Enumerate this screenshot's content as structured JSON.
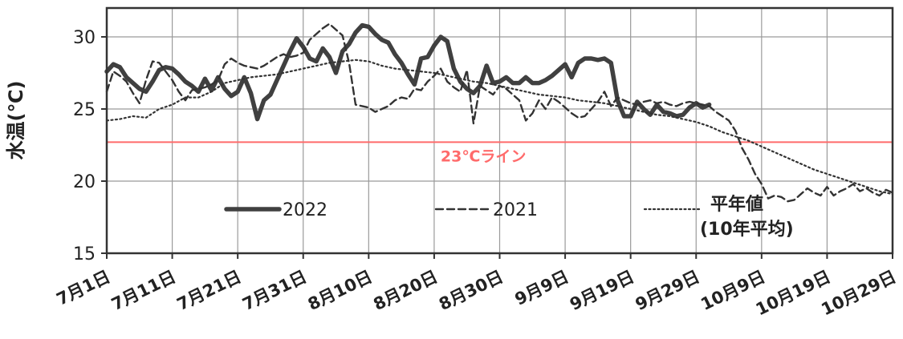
{
  "chart_data": {
    "type": "line",
    "ylabel": "水温(℃)",
    "xlabel": "",
    "title": "",
    "ylim": [
      15,
      32
    ],
    "xlim": [
      0,
      120
    ],
    "yticks": [
      15,
      20,
      25,
      30
    ],
    "xticks": [
      {
        "x": 0,
        "label": "7月1日"
      },
      {
        "x": 10,
        "label": "7月11日"
      },
      {
        "x": 20,
        "label": "7月21日"
      },
      {
        "x": 30,
        "label": "7月31日"
      },
      {
        "x": 40,
        "label": "8月10日"
      },
      {
        "x": 50,
        "label": "8月20日"
      },
      {
        "x": 60,
        "label": "8月30日"
      },
      {
        "x": 70,
        "label": "9月9日"
      },
      {
        "x": 80,
        "label": "9月19日"
      },
      {
        "x": 90,
        "label": "9月29日"
      },
      {
        "x": 100,
        "label": "10月9日"
      },
      {
        "x": 110,
        "label": "10月19日"
      },
      {
        "x": 120,
        "label": "10月29日"
      }
    ],
    "grid": true,
    "reference_line": {
      "y": 22.7,
      "label": "23℃ライン",
      "color": "#ff6b6b"
    },
    "series": [
      {
        "name": "2022",
        "style": "solid-thick",
        "color": "#404040",
        "points": [
          [
            0,
            27.6
          ],
          [
            1,
            28.1
          ],
          [
            2,
            27.9
          ],
          [
            3,
            27.2
          ],
          [
            4,
            26.8
          ],
          [
            5,
            26.4
          ],
          [
            6,
            26.2
          ],
          [
            7,
            26.9
          ],
          [
            8,
            27.7
          ],
          [
            9,
            27.9
          ],
          [
            10,
            27.8
          ],
          [
            11,
            27.4
          ],
          [
            12,
            26.9
          ],
          [
            13,
            26.6
          ],
          [
            14,
            26.2
          ],
          [
            15,
            27.1
          ],
          [
            16,
            26.3
          ],
          [
            17,
            27.2
          ],
          [
            18,
            26.4
          ],
          [
            19,
            25.9
          ],
          [
            20,
            26.2
          ],
          [
            21,
            27.2
          ],
          [
            22,
            26.1
          ],
          [
            23,
            24.3
          ],
          [
            24,
            25.6
          ],
          [
            25,
            26.0
          ],
          [
            26,
            27.0
          ],
          [
            27,
            28.0
          ],
          [
            28,
            29.0
          ],
          [
            29,
            29.9
          ],
          [
            30,
            29.3
          ],
          [
            31,
            28.5
          ],
          [
            32,
            28.3
          ],
          [
            33,
            29.2
          ],
          [
            34,
            28.6
          ],
          [
            35,
            27.5
          ],
          [
            36,
            29.0
          ],
          [
            37,
            29.5
          ],
          [
            38,
            30.3
          ],
          [
            39,
            30.8
          ],
          [
            40,
            30.7
          ],
          [
            41,
            30.2
          ],
          [
            42,
            29.8
          ],
          [
            43,
            29.6
          ],
          [
            44,
            28.8
          ],
          [
            45,
            28.2
          ],
          [
            46,
            27.4
          ],
          [
            47,
            26.7
          ],
          [
            48,
            28.5
          ],
          [
            49,
            28.6
          ],
          [
            50,
            29.4
          ],
          [
            51,
            30.0
          ],
          [
            52,
            29.7
          ],
          [
            53,
            27.8
          ],
          [
            54,
            26.9
          ],
          [
            55,
            26.4
          ],
          [
            56,
            26.1
          ],
          [
            57,
            26.6
          ],
          [
            58,
            28.0
          ],
          [
            59,
            26.8
          ],
          [
            60,
            26.9
          ],
          [
            61,
            27.2
          ],
          [
            62,
            26.8
          ],
          [
            63,
            26.8
          ],
          [
            64,
            27.2
          ],
          [
            65,
            26.8
          ],
          [
            66,
            26.8
          ],
          [
            67,
            27.0
          ],
          [
            68,
            27.3
          ],
          [
            69,
            27.7
          ],
          [
            70,
            28.1
          ],
          [
            71,
            27.2
          ],
          [
            72,
            28.2
          ],
          [
            73,
            28.5
          ],
          [
            74,
            28.5
          ],
          [
            75,
            28.4
          ],
          [
            76,
            28.5
          ],
          [
            77,
            28.2
          ],
          [
            78,
            25.6
          ],
          [
            79,
            24.5
          ],
          [
            80,
            24.5
          ],
          [
            81,
            25.5
          ],
          [
            82,
            25.0
          ],
          [
            83,
            24.6
          ],
          [
            84,
            25.3
          ],
          [
            85,
            24.8
          ],
          [
            86,
            24.7
          ],
          [
            87,
            24.5
          ],
          [
            88,
            24.6
          ],
          [
            89,
            25.1
          ],
          [
            90,
            25.4
          ],
          [
            91,
            25.1
          ],
          [
            92,
            25.3
          ]
        ]
      },
      {
        "name": "2021",
        "style": "dashed",
        "color": "#333333",
        "points": [
          [
            0,
            26.2
          ],
          [
            1,
            27.6
          ],
          [
            2,
            27.3
          ],
          [
            3,
            26.9
          ],
          [
            4,
            26.1
          ],
          [
            5,
            25.4
          ],
          [
            6,
            27.0
          ],
          [
            7,
            28.3
          ],
          [
            8,
            28.2
          ],
          [
            9,
            27.6
          ],
          [
            10,
            27.0
          ],
          [
            11,
            26.2
          ],
          [
            12,
            25.6
          ],
          [
            13,
            26.3
          ],
          [
            14,
            26.4
          ],
          [
            15,
            26.5
          ],
          [
            16,
            26.7
          ],
          [
            17,
            27.0
          ],
          [
            18,
            28.1
          ],
          [
            19,
            28.5
          ],
          [
            20,
            28.2
          ],
          [
            21,
            28.0
          ],
          [
            22,
            27.9
          ],
          [
            23,
            27.8
          ],
          [
            24,
            28.0
          ],
          [
            25,
            28.3
          ],
          [
            26,
            28.6
          ],
          [
            27,
            28.8
          ],
          [
            28,
            28.6
          ],
          [
            29,
            28.7
          ],
          [
            30,
            28.9
          ],
          [
            31,
            29.8
          ],
          [
            32,
            30.2
          ],
          [
            33,
            30.6
          ],
          [
            34,
            30.9
          ],
          [
            35,
            30.5
          ],
          [
            36,
            30.1
          ],
          [
            37,
            28.2
          ],
          [
            38,
            25.3
          ],
          [
            39,
            25.2
          ],
          [
            40,
            25.1
          ],
          [
            41,
            24.8
          ],
          [
            42,
            25.0
          ],
          [
            43,
            25.2
          ],
          [
            44,
            25.6
          ],
          [
            45,
            25.8
          ],
          [
            46,
            25.7
          ],
          [
            47,
            26.4
          ],
          [
            48,
            26.3
          ],
          [
            49,
            26.9
          ],
          [
            50,
            27.3
          ],
          [
            51,
            27.8
          ],
          [
            52,
            26.9
          ],
          [
            53,
            26.5
          ],
          [
            54,
            26.2
          ],
          [
            55,
            27.7
          ],
          [
            56,
            24.0
          ],
          [
            57,
            26.6
          ],
          [
            58,
            26.3
          ],
          [
            59,
            26.0
          ],
          [
            60,
            26.6
          ],
          [
            61,
            26.4
          ],
          [
            62,
            26.0
          ],
          [
            63,
            25.6
          ],
          [
            64,
            24.2
          ],
          [
            65,
            24.7
          ],
          [
            66,
            25.6
          ],
          [
            67,
            25.0
          ],
          [
            68,
            25.8
          ],
          [
            69,
            25.5
          ],
          [
            70,
            25.1
          ],
          [
            71,
            24.7
          ],
          [
            72,
            24.4
          ],
          [
            73,
            24.5
          ],
          [
            74,
            25.0
          ],
          [
            75,
            25.5
          ],
          [
            76,
            26.2
          ],
          [
            77,
            25.2
          ],
          [
            78,
            25.8
          ],
          [
            79,
            25.6
          ],
          [
            80,
            25.4
          ],
          [
            81,
            25.3
          ],
          [
            82,
            25.5
          ],
          [
            83,
            25.6
          ],
          [
            84,
            25.4
          ],
          [
            85,
            25.5
          ],
          [
            86,
            25.3
          ],
          [
            87,
            25.2
          ],
          [
            88,
            25.4
          ],
          [
            89,
            25.5
          ],
          [
            90,
            25.4
          ],
          [
            91,
            25.3
          ],
          [
            92,
            25.2
          ],
          [
            93,
            24.8
          ],
          [
            94,
            24.5
          ],
          [
            95,
            24.2
          ],
          [
            96,
            23.5
          ],
          [
            97,
            22.3
          ],
          [
            98,
            21.5
          ],
          [
            99,
            20.5
          ],
          [
            100,
            19.8
          ],
          [
            101,
            18.8
          ],
          [
            102,
            19.0
          ],
          [
            103,
            18.9
          ],
          [
            104,
            18.6
          ],
          [
            105,
            18.7
          ],
          [
            106,
            19.1
          ],
          [
            107,
            19.5
          ],
          [
            108,
            19.2
          ],
          [
            109,
            19.0
          ],
          [
            110,
            19.6
          ],
          [
            111,
            19.0
          ],
          [
            112,
            19.3
          ],
          [
            113,
            19.5
          ],
          [
            114,
            19.8
          ],
          [
            115,
            19.3
          ],
          [
            116,
            19.5
          ],
          [
            117,
            19.2
          ],
          [
            118,
            19.0
          ],
          [
            119,
            19.4
          ],
          [
            120,
            19.2
          ]
        ]
      },
      {
        "name": "平年値",
        "name_sub": "(10年平均)",
        "style": "dotted",
        "color": "#333333",
        "points": [
          [
            0,
            24.2
          ],
          [
            2,
            24.3
          ],
          [
            4,
            24.5
          ],
          [
            6,
            24.4
          ],
          [
            8,
            25.0
          ],
          [
            10,
            25.3
          ],
          [
            12,
            25.8
          ],
          [
            14,
            25.8
          ],
          [
            16,
            26.2
          ],
          [
            18,
            26.8
          ],
          [
            20,
            27.0
          ],
          [
            22,
            27.2
          ],
          [
            24,
            27.3
          ],
          [
            26,
            27.4
          ],
          [
            28,
            27.6
          ],
          [
            30,
            27.8
          ],
          [
            32,
            28.0
          ],
          [
            34,
            28.2
          ],
          [
            36,
            28.3
          ],
          [
            38,
            28.4
          ],
          [
            40,
            28.3
          ],
          [
            42,
            28.0
          ],
          [
            44,
            27.8
          ],
          [
            46,
            27.7
          ],
          [
            48,
            27.6
          ],
          [
            50,
            27.5
          ],
          [
            52,
            27.3
          ],
          [
            54,
            27.1
          ],
          [
            56,
            26.9
          ],
          [
            58,
            26.8
          ],
          [
            60,
            26.6
          ],
          [
            62,
            26.4
          ],
          [
            64,
            26.2
          ],
          [
            66,
            26.0
          ],
          [
            68,
            25.9
          ],
          [
            70,
            25.8
          ],
          [
            72,
            25.6
          ],
          [
            74,
            25.5
          ],
          [
            76,
            25.4
          ],
          [
            78,
            25.2
          ],
          [
            80,
            25.0
          ],
          [
            82,
            24.8
          ],
          [
            84,
            24.6
          ],
          [
            86,
            24.5
          ],
          [
            88,
            24.3
          ],
          [
            90,
            24.1
          ],
          [
            92,
            23.8
          ],
          [
            94,
            23.4
          ],
          [
            96,
            23.1
          ],
          [
            98,
            22.8
          ],
          [
            100,
            22.4
          ],
          [
            102,
            22.0
          ],
          [
            104,
            21.6
          ],
          [
            106,
            21.2
          ],
          [
            108,
            20.8
          ],
          [
            110,
            20.5
          ],
          [
            112,
            20.2
          ],
          [
            114,
            19.9
          ],
          [
            116,
            19.6
          ],
          [
            118,
            19.3
          ],
          [
            120,
            19.1
          ]
        ]
      }
    ]
  }
}
